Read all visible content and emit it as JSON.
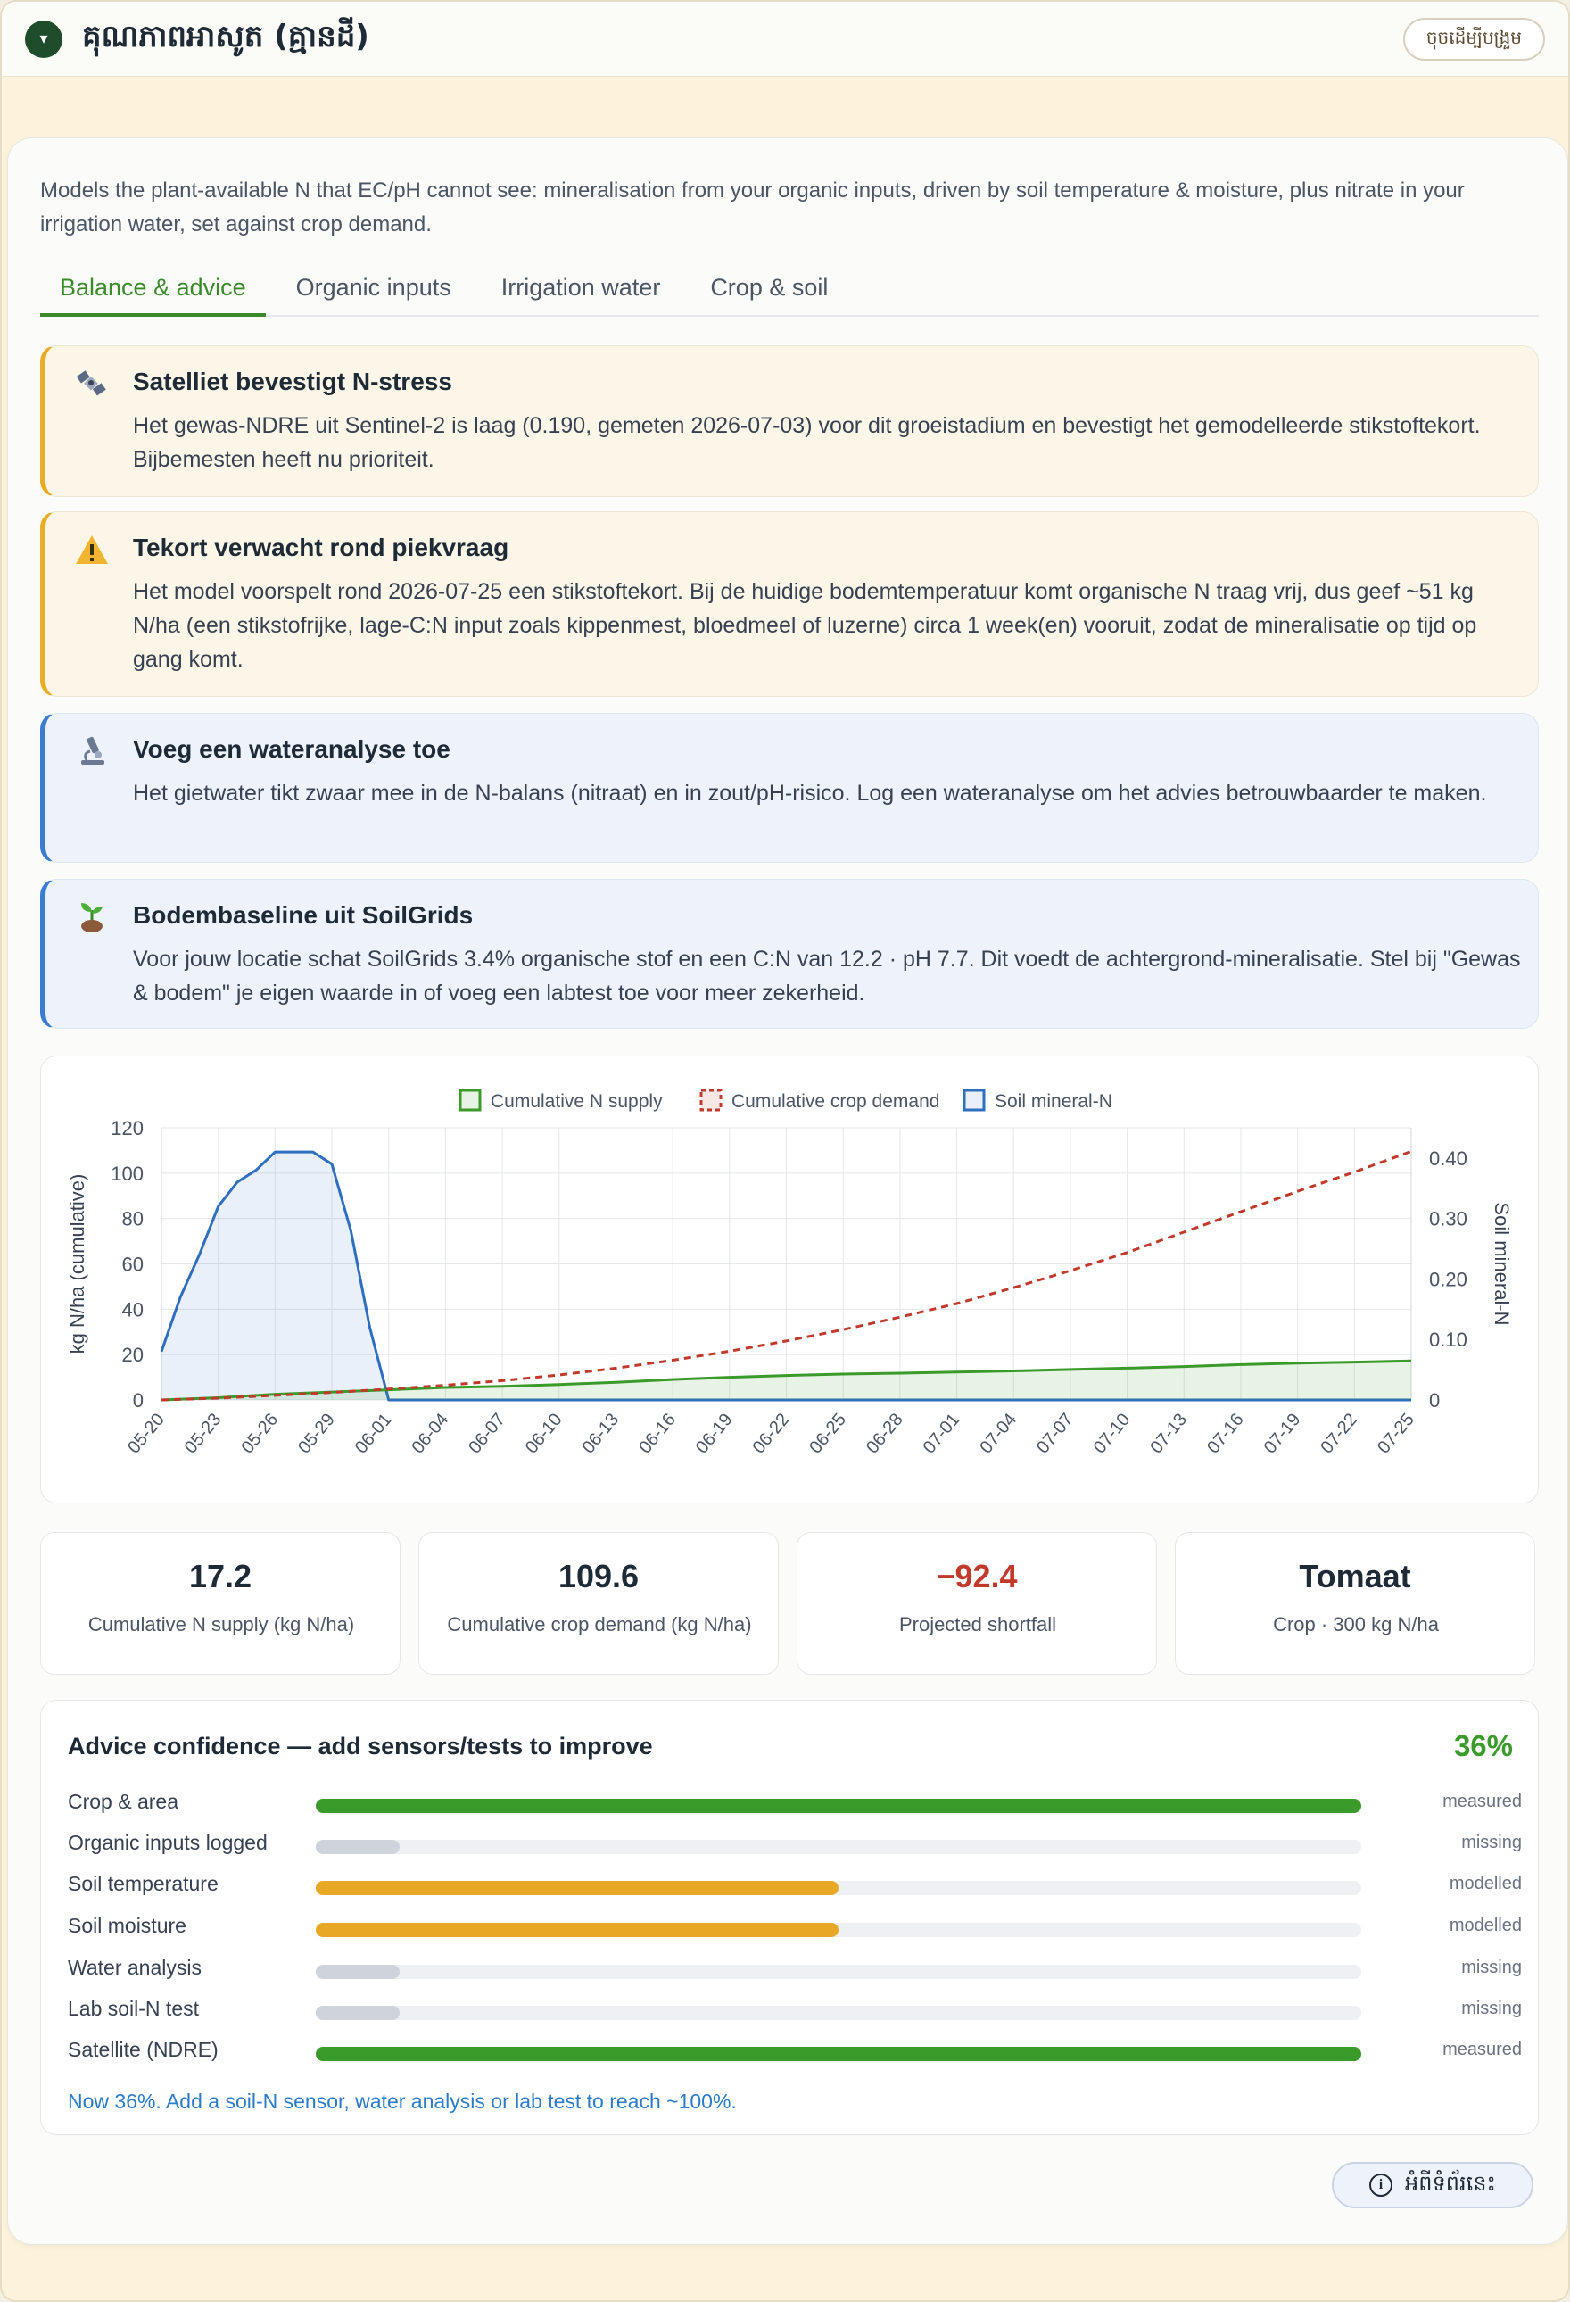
{
  "header": {
    "title": "គុណភាពអាសូត (គ្មានដី)",
    "collapse_glyph": "▾",
    "reset_label": "ចុចដើម្បីបង្រួម"
  },
  "intro": "Models the plant-available N that EC/pH cannot see: mineralisation from your organic inputs, driven by soil temperature & moisture, plus nitrate in your irrigation water, set against crop demand.",
  "tabs": [
    {
      "label": "Balance & advice",
      "active": true
    },
    {
      "label": "Organic inputs",
      "active": false
    },
    {
      "label": "Irrigation water",
      "active": false
    },
    {
      "label": "Crop & soil",
      "active": false
    }
  ],
  "alerts": [
    {
      "icon": "satellite-icon",
      "kind": "warn",
      "title": "Satelliet bevestigt N-stress",
      "body": "Het gewas-NDRE uit Sentinel-2 is laag (0.190, gemeten 2026-07-03) voor dit groeistadium en bevestigt het gemodelleerde stikstoftekort. Bijbemesten heeft nu prioriteit."
    },
    {
      "icon": "warning-icon",
      "kind": "warn",
      "title": "Tekort verwacht rond piekvraag",
      "body": "Het model voorspelt rond 2026-07-25 een stikstoftekort. Bij de huidige bodemtemperatuur komt organische N traag vrij, dus geef ~51 kg N/ha (een stikstofrijke, lage-C:N input zoals kippenmest, bloedmeel of luzerne) circa 1 week(en) vooruit, zodat de mineralisatie op tijd op gang komt."
    },
    {
      "icon": "microscope-icon",
      "kind": "info",
      "title": "Voeg een wateranalyse toe",
      "body": "Het gietwater tikt zwaar mee in de N-balans (nitraat) en in zout/pH-risico. Log een wateranalyse om het advies betrouwbaarder te maken."
    },
    {
      "icon": "seedling-icon",
      "kind": "info",
      "title": "Bodembaseline uit SoilGrids",
      "body": "Voor jouw locatie schat SoilGrids 3.4% organische stof en een C:N van 12.2 · pH 7.7. Dit voedt de achtergrond-mineralisatie. Stel bij \"Gewas & bodem\" je eigen waarde in of voeg een labtest toe voor meer zekerheid."
    }
  ],
  "chart_data": {
    "type": "line",
    "legend": [
      "Cumulative N supply",
      "Cumulative crop demand",
      "Soil mineral-N"
    ],
    "legend_position": "top-center",
    "ylabel": "kg N/ha (cumulative)",
    "y2label": "Soil mineral-N",
    "ylim": [
      0,
      120
    ],
    "y2lim": [
      0,
      0.45
    ],
    "yticks": [
      0,
      20,
      40,
      60,
      80,
      100,
      120
    ],
    "y2ticks": [
      "0",
      "0.10",
      "0.20",
      "0.30",
      "0.40"
    ],
    "grid": true,
    "x": [
      "05-20",
      "05-21",
      "05-22",
      "05-23",
      "05-24",
      "05-25",
      "05-26",
      "05-27",
      "05-28",
      "05-29",
      "05-30",
      "05-31",
      "06-01",
      "06-02",
      "06-03",
      "06-04",
      "06-05",
      "06-06",
      "06-07",
      "06-08",
      "06-09",
      "06-10",
      "06-11",
      "06-12",
      "06-13",
      "06-14",
      "06-15",
      "06-16",
      "06-17",
      "06-18",
      "06-19",
      "06-20",
      "06-21",
      "06-22",
      "06-23",
      "06-24",
      "06-25",
      "06-26",
      "06-27",
      "06-28",
      "06-29",
      "06-30",
      "07-01",
      "07-02",
      "07-03",
      "07-04",
      "07-05",
      "07-06",
      "07-07",
      "07-08",
      "07-09",
      "07-10",
      "07-11",
      "07-12",
      "07-13",
      "07-14",
      "07-15",
      "07-16",
      "07-17",
      "07-18",
      "07-19",
      "07-20",
      "07-21",
      "07-22",
      "07-23",
      "07-24",
      "07-25"
    ],
    "xticks": [
      "05-20",
      "05-23",
      "05-26",
      "05-29",
      "06-01",
      "06-04",
      "06-07",
      "06-10",
      "06-13",
      "06-16",
      "06-19",
      "06-22",
      "06-25",
      "06-28",
      "07-01",
      "07-04",
      "07-07",
      "07-10",
      "07-13",
      "07-16",
      "07-19",
      "07-22",
      "07-25"
    ],
    "series": [
      {
        "name": "Cumulative N supply",
        "axis": "left",
        "color": "#3a9a2a",
        "dash": false,
        "fill": "rgba(58,154,42,0.12)",
        "points": [
          [
            "05-20",
            0
          ],
          [
            "05-23",
            1
          ],
          [
            "05-26",
            2.5
          ],
          [
            "05-29",
            3.5
          ],
          [
            "06-01",
            4.5
          ],
          [
            "06-04",
            5.5
          ],
          [
            "06-07",
            6
          ],
          [
            "06-10",
            6.8
          ],
          [
            "06-13",
            7.8
          ],
          [
            "06-16",
            9
          ],
          [
            "06-19",
            10
          ],
          [
            "06-22",
            10.8
          ],
          [
            "06-25",
            11.4
          ],
          [
            "06-28",
            11.8
          ],
          [
            "07-01",
            12.3
          ],
          [
            "07-04",
            12.8
          ],
          [
            "07-07",
            13.4
          ],
          [
            "07-10",
            14
          ],
          [
            "07-13",
            14.7
          ],
          [
            "07-16",
            15.6
          ],
          [
            "07-19",
            16.2
          ],
          [
            "07-22",
            16.7
          ],
          [
            "07-25",
            17.2
          ]
        ]
      },
      {
        "name": "Cumulative crop demand",
        "axis": "left",
        "color": "#c0392b",
        "dash": true,
        "fill": null,
        "points": [
          [
            "05-20",
            0
          ],
          [
            "05-23",
            0.8
          ],
          [
            "05-26",
            2
          ],
          [
            "05-29",
            3.3
          ],
          [
            "06-01",
            4.8
          ],
          [
            "06-04",
            6.5
          ],
          [
            "06-07",
            8.5
          ],
          [
            "06-10",
            11
          ],
          [
            "06-13",
            14
          ],
          [
            "06-16",
            17.5
          ],
          [
            "06-19",
            21.5
          ],
          [
            "06-22",
            26
          ],
          [
            "06-25",
            31
          ],
          [
            "06-28",
            36.5
          ],
          [
            "07-01",
            42.5
          ],
          [
            "07-04",
            49.5
          ],
          [
            "07-07",
            57
          ],
          [
            "07-10",
            65
          ],
          [
            "07-13",
            74
          ],
          [
            "07-16",
            83
          ],
          [
            "07-19",
            92
          ],
          [
            "07-22",
            100.5
          ],
          [
            "07-25",
            109.6
          ]
        ]
      },
      {
        "name": "Soil mineral-N",
        "axis": "right",
        "color": "#2f6fc0",
        "dash": false,
        "fill": "rgba(47,111,192,0.10)",
        "points": [
          [
            "05-20",
            0.08
          ],
          [
            "05-21",
            0.17
          ],
          [
            "05-22",
            0.24
          ],
          [
            "05-23",
            0.32
          ],
          [
            "05-24",
            0.36
          ],
          [
            "05-25",
            0.38
          ],
          [
            "05-26",
            0.41
          ],
          [
            "05-27",
            0.41
          ],
          [
            "05-28",
            0.41
          ],
          [
            "05-29",
            0.39
          ],
          [
            "05-30",
            0.28
          ],
          [
            "05-31",
            0.12
          ],
          [
            "06-01",
            0
          ],
          [
            "06-04",
            0
          ],
          [
            "07-25",
            0
          ]
        ]
      }
    ]
  },
  "stats": [
    {
      "value": "17.2",
      "label": "Cumulative N supply (kg N/ha)",
      "color": "#1f2a37"
    },
    {
      "value": "109.6",
      "label": "Cumulative crop demand (kg N/ha)",
      "color": "#1f2a37"
    },
    {
      "value": "−92.4",
      "label": "Projected shortfall",
      "color": "#c0392b"
    },
    {
      "value": "Tomaat",
      "label": "Crop · 300 kg N/ha",
      "color": "#1f2a37"
    }
  ],
  "confidence": {
    "title": "Advice confidence — add sensors/tests to improve",
    "percent": "36%",
    "rows": [
      {
        "label": "Crop & area",
        "level": 1.0,
        "status": "measured",
        "color": "#3a9a2a"
      },
      {
        "label": "Organic inputs logged",
        "level": 0.08,
        "status": "missing",
        "color": "#cfd4dc"
      },
      {
        "label": "Soil temperature",
        "level": 0.5,
        "status": "modelled",
        "color": "#e8a825"
      },
      {
        "label": "Soil moisture",
        "level": 0.5,
        "status": "modelled",
        "color": "#e8a825"
      },
      {
        "label": "Water analysis",
        "level": 0.08,
        "status": "missing",
        "color": "#cfd4dc"
      },
      {
        "label": "Lab soil-N test",
        "level": 0.08,
        "status": "missing",
        "color": "#cfd4dc"
      },
      {
        "label": "Satellite (NDRE)",
        "level": 1.0,
        "status": "measured",
        "color": "#3a9a2a"
      }
    ],
    "note": "Now 36%. Add a soil-N sensor, water analysis or lab test to reach ~100%."
  },
  "about_label": "អំពីទំព័រនេះ",
  "colors": {
    "accent": "#3a8a2a",
    "warn": "#e8ac27",
    "info": "#3b7bd0",
    "danger": "#c0392b"
  }
}
